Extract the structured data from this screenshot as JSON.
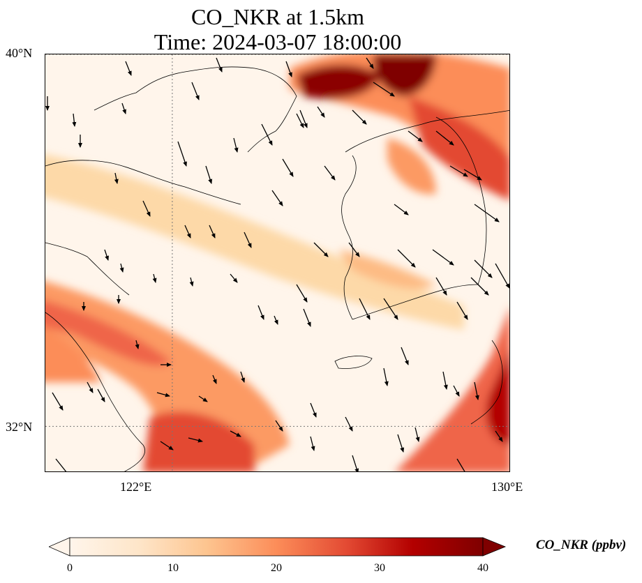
{
  "title": {
    "line1": "CO_NKR at 1.5km",
    "line2": "Time: 2024-03-07 18:00:00"
  },
  "map": {
    "field": "CO_NKR",
    "level": "1.5km",
    "lon_range": [
      119.0,
      130.0
    ],
    "lat_range": [
      31.0,
      40.0
    ],
    "lat_ticks": [
      {
        "value": 40,
        "label": "40°N"
      },
      {
        "value": 32,
        "label": "32°N"
      }
    ],
    "lon_ticks": [
      {
        "value": 122,
        "label": "122°E"
      },
      {
        "value": 130,
        "label": "130°E"
      }
    ],
    "gridlines": "dotted",
    "overlays": [
      "coastlines",
      "wind-vectors"
    ]
  },
  "colorbar": {
    "label": "CO_NKR (ppbv)",
    "colormap": "OrRd",
    "range": [
      0,
      40
    ],
    "extend": "both",
    "ticks": [
      {
        "value": 0,
        "label": "0"
      },
      {
        "value": 10,
        "label": "10"
      },
      {
        "value": 20,
        "label": "20"
      },
      {
        "value": 30,
        "label": "30"
      },
      {
        "value": 40,
        "label": "40"
      }
    ],
    "colors": [
      "#fff5eb",
      "#fee1c2",
      "#fdc590",
      "#fc8d59",
      "#e34a33",
      "#b30000",
      "#7f0000"
    ]
  }
}
